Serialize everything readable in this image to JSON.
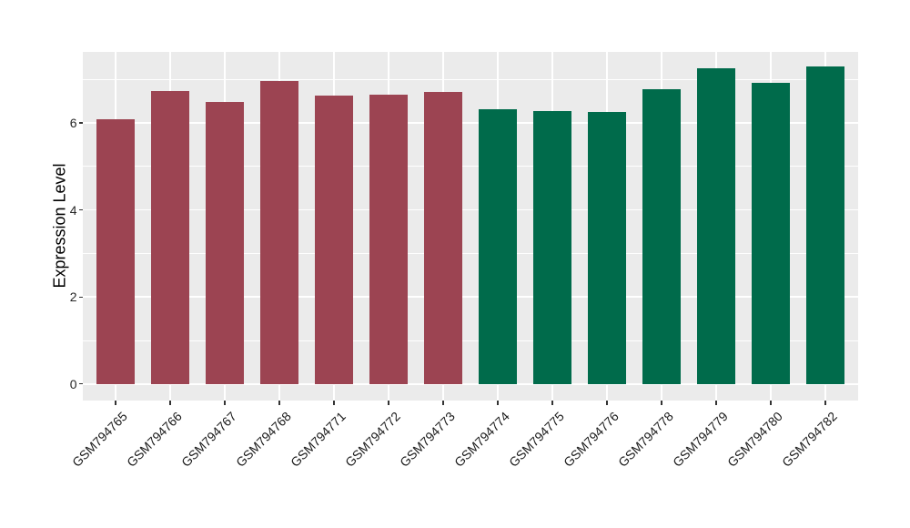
{
  "chart_data": {
    "type": "bar",
    "title": "",
    "xlabel": "",
    "ylabel": "Expression Level",
    "categories": [
      "GSM794765",
      "GSM794766",
      "GSM794767",
      "GSM794768",
      "GSM794771",
      "GSM794772",
      "GSM794773",
      "GSM794774",
      "GSM794775",
      "GSM794776",
      "GSM794778",
      "GSM794779",
      "GSM794780",
      "GSM794782"
    ],
    "values": [
      6.09,
      6.74,
      6.48,
      6.96,
      6.63,
      6.65,
      6.7,
      6.32,
      6.28,
      6.25,
      6.78,
      7.25,
      6.91,
      7.29
    ],
    "bar_colors": [
      "#9C4452",
      "#9C4452",
      "#9C4452",
      "#9C4452",
      "#9C4452",
      "#9C4452",
      "#9C4452",
      "#006B4B",
      "#006B4B",
      "#006B4B",
      "#006B4B",
      "#006B4B",
      "#006B4B",
      "#006B4B"
    ],
    "group_colors": {
      "group1": "#9C4452",
      "group2": "#006B4B"
    },
    "ylim": [
      -0.38,
      7.63
    ],
    "y_ticks": [
      0,
      2,
      4,
      6
    ],
    "y_tick_labels": [
      "0",
      "2",
      "4",
      "6"
    ],
    "y_minor_ticks": [
      1,
      3,
      5,
      7
    ],
    "layout_hints": {
      "legend": "none",
      "grid": "major-and-minor",
      "x_tick_rotation": 45,
      "panel_bg": "#EBEBEB",
      "grid_color": "#FFFFFF",
      "tick_color": "#333333",
      "background": "#FFFFFF"
    }
  }
}
